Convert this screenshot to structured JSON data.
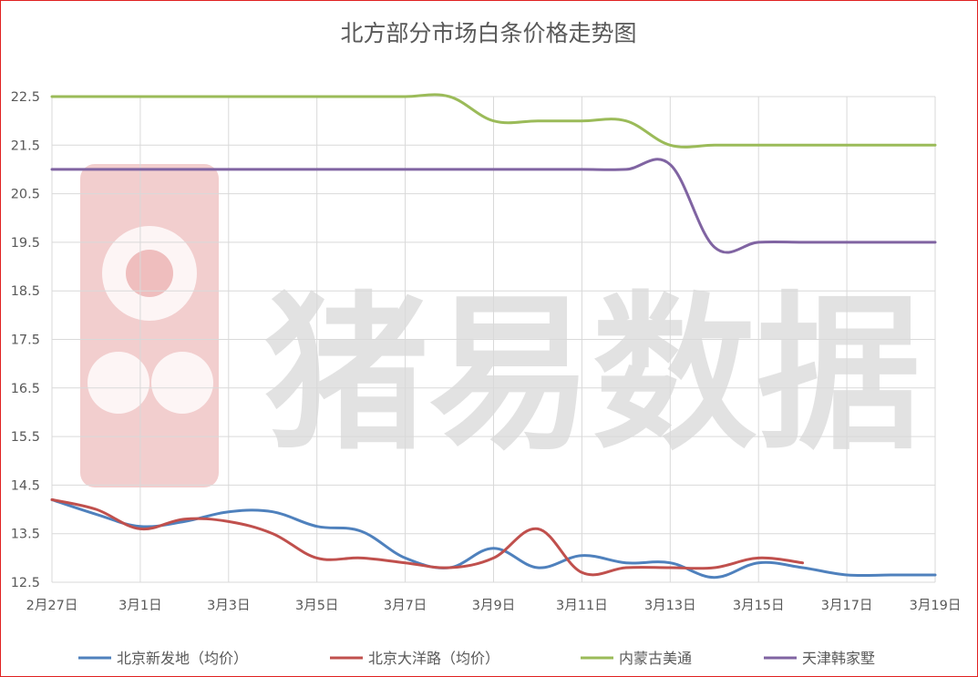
{
  "chart_data": {
    "type": "line",
    "title": "北方部分市场白条价格走势图",
    "xlabel": "",
    "ylabel": "",
    "x": [
      "2月27日",
      "2月28日",
      "3月1日",
      "3月2日",
      "3月3日",
      "3月4日",
      "3月5日",
      "3月6日",
      "3月7日",
      "3月8日",
      "3月9日",
      "3月10日",
      "3月11日",
      "3月12日",
      "3月13日",
      "3月14日",
      "3月15日",
      "3月16日",
      "3月17日",
      "3月18日",
      "3月19日"
    ],
    "x_tick_labels": [
      "2月27日",
      "3月1日",
      "3月3日",
      "3月5日",
      "3月7日",
      "3月9日",
      "3月11日",
      "3月13日",
      "3月15日",
      "3月17日",
      "3月19日"
    ],
    "ylim": [
      12.5,
      22.5
    ],
    "y_ticks": [
      "12.5",
      "13.5",
      "14.5",
      "15.5",
      "16.5",
      "17.5",
      "18.5",
      "19.5",
      "20.5",
      "21.5",
      "22.5"
    ],
    "y_tick_values": [
      12.5,
      13.5,
      14.5,
      15.5,
      16.5,
      17.5,
      18.5,
      19.5,
      20.5,
      21.5,
      22.5
    ],
    "grid": true,
    "legend_position": "bottom",
    "series": [
      {
        "name": "北京新发地（均价）",
        "color": "#4f81bd",
        "values": [
          14.2,
          13.9,
          13.65,
          13.75,
          13.95,
          13.95,
          13.65,
          13.55,
          13.0,
          12.8,
          13.2,
          12.8,
          13.05,
          12.9,
          12.9,
          12.6,
          12.9,
          12.8,
          12.65,
          12.65,
          12.65
        ]
      },
      {
        "name": "北京大洋路（均价）",
        "color": "#c0504d",
        "values": [
          14.2,
          14.0,
          13.6,
          13.8,
          13.75,
          13.5,
          13.0,
          13.0,
          12.9,
          12.8,
          13.0,
          13.6,
          12.7,
          12.8,
          12.8,
          12.8,
          13.0,
          12.9,
          null,
          null,
          null
        ]
      },
      {
        "name": "内蒙古美通",
        "color": "#9bbb59",
        "values": [
          22.5,
          22.5,
          22.5,
          22.5,
          22.5,
          22.5,
          22.5,
          22.5,
          22.5,
          22.5,
          22.0,
          22.0,
          22.0,
          22.0,
          21.5,
          21.5,
          21.5,
          21.5,
          21.5,
          21.5,
          21.5
        ]
      },
      {
        "name": "天津韩家墅",
        "color": "#8064a2",
        "values": [
          21.0,
          21.0,
          21.0,
          21.0,
          21.0,
          21.0,
          21.0,
          21.0,
          21.0,
          21.0,
          21.0,
          21.0,
          21.0,
          21.0,
          21.1,
          19.4,
          19.5,
          19.5,
          19.5,
          19.5,
          19.5
        ]
      }
    ]
  },
  "watermark": {
    "text": "猪易数据",
    "color": "#e8a6a6"
  }
}
